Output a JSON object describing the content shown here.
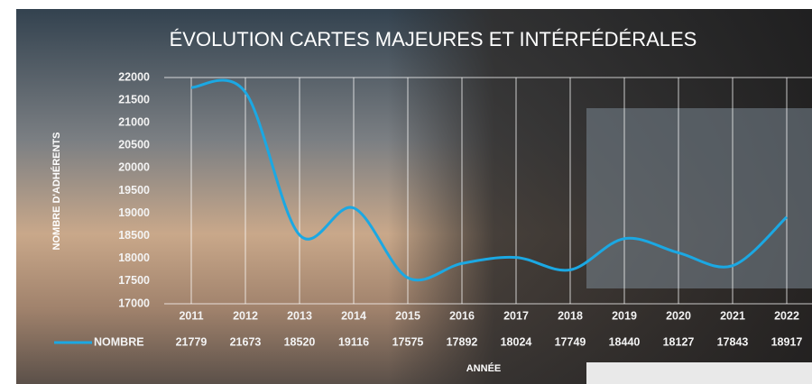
{
  "chart_data": {
    "type": "line",
    "title": "ÉVOLUTION CARTES MAJEURES ET INTÉRFÉDÉRALES",
    "ylabel": "NOMBRE D'ADHÉRENTS",
    "xlabel": "ANNÉE",
    "categories": [
      "2011",
      "2012",
      "2013",
      "2014",
      "2015",
      "2016",
      "2017",
      "2018",
      "2019",
      "2020",
      "2021",
      "2022"
    ],
    "series": [
      {
        "name": "NOMBRE",
        "color": "#1ba8e3",
        "values": [
          21779,
          21673,
          18520,
          19116,
          17575,
          17892,
          18024,
          17749,
          18440,
          18127,
          17843,
          18917
        ]
      }
    ],
    "ylim": [
      17000,
      22000
    ],
    "yticks": [
      17000,
      17500,
      18000,
      18500,
      19000,
      19500,
      20000,
      20500,
      21000,
      21500,
      22000
    ],
    "grid": true
  }
}
